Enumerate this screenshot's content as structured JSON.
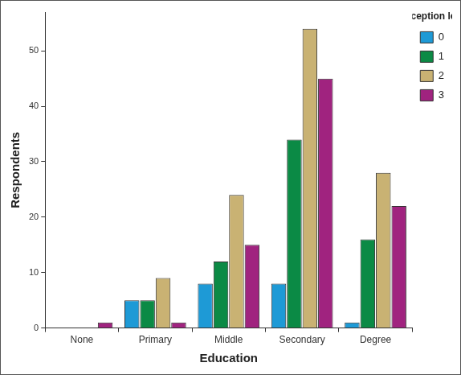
{
  "chart_data": {
    "type": "bar",
    "x_label": "Education",
    "y_label": "Respondents",
    "categories": [
      "None",
      "Primary",
      "Middle",
      "Secondary",
      "Degree"
    ],
    "series": [
      {
        "name": "0",
        "color": "#1e9ad6",
        "values": [
          0,
          5,
          8,
          8,
          1
        ]
      },
      {
        "name": "1",
        "color": "#0b8a45",
        "values": [
          0,
          5,
          12,
          34,
          16
        ]
      },
      {
        "name": "2",
        "color": "#c9b273",
        "values": [
          0,
          9,
          24,
          54,
          28
        ]
      },
      {
        "name": "3",
        "color": "#a0237f",
        "values": [
          1,
          1,
          15,
          45,
          22
        ]
      }
    ],
    "legend_title": "Perception level",
    "legend": "right",
    "ylim": [
      0,
      57
    ],
    "yticks": [
      0,
      10,
      20,
      30,
      40,
      50
    ],
    "grid": false
  }
}
